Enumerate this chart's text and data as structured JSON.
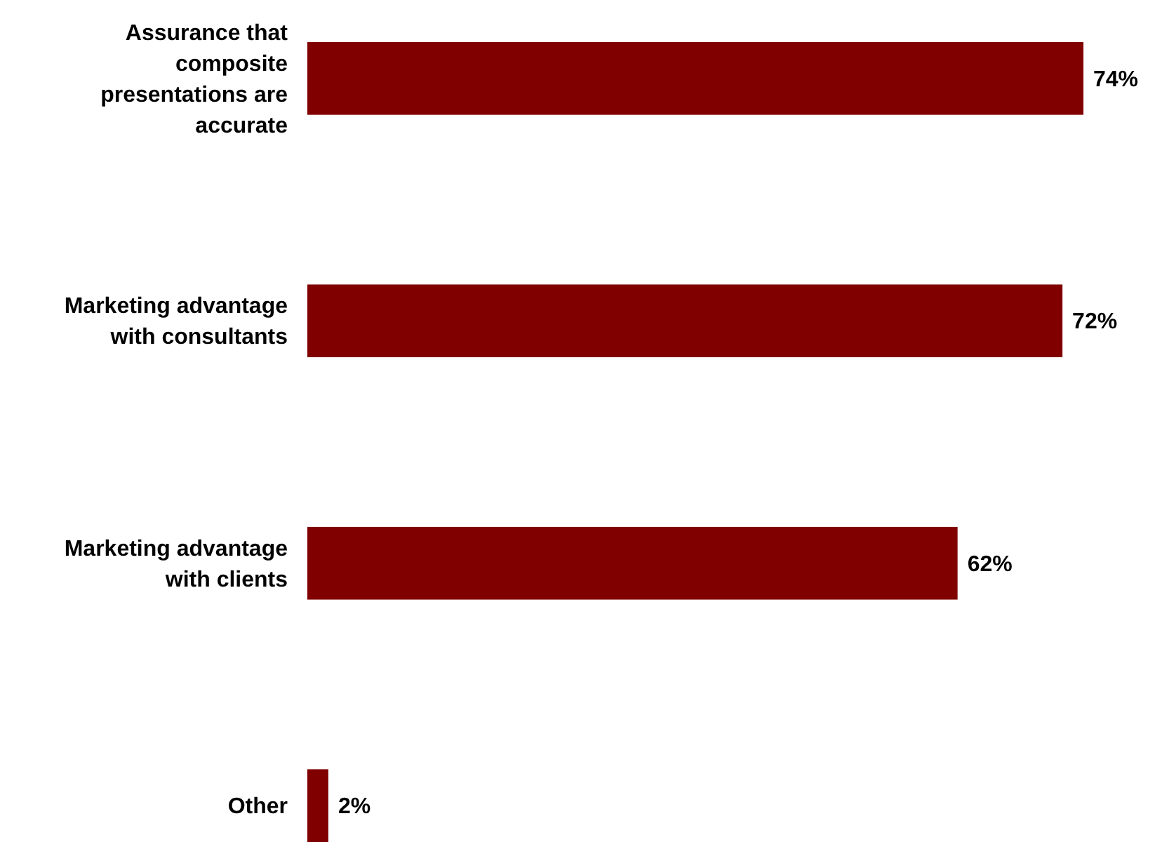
{
  "chart_data": {
    "type": "bar",
    "orientation": "horizontal",
    "categories": [
      "Assurance that composite presentations are accurate",
      "Marketing advantage with consultants",
      "Marketing advantage with clients",
      "Other"
    ],
    "values": [
      74,
      72,
      62,
      2
    ],
    "value_labels": [
      "74%",
      "72%",
      "62%",
      "2%"
    ],
    "color": "#800000"
  }
}
